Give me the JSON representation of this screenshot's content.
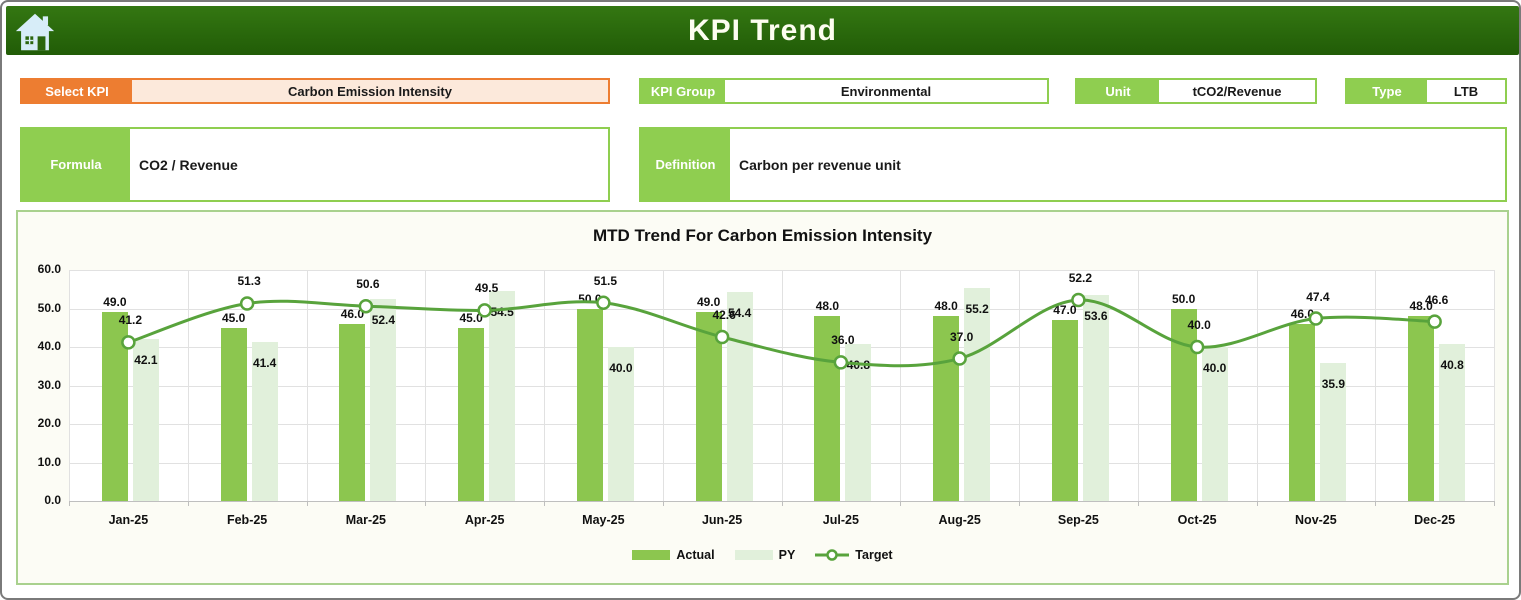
{
  "header": {
    "title": "KPI Trend"
  },
  "controls": {
    "select_kpi": {
      "label": "Select KPI",
      "value": "Carbon Emission Intensity"
    },
    "kpi_group": {
      "label": "KPI Group",
      "value": "Environmental"
    },
    "unit": {
      "label": "Unit",
      "value": "tCO2/Revenue"
    },
    "type": {
      "label": "Type",
      "value": "LTB"
    }
  },
  "details": {
    "formula": {
      "label": "Formula",
      "value": "CO2 / Revenue"
    },
    "definition": {
      "label": "Definition",
      "value": "Carbon per revenue unit"
    }
  },
  "chart_data": {
    "type": "bar",
    "subtype": "grouped bars with smoothed target line overlay",
    "title": "MTD Trend For Carbon Emission Intensity",
    "categories": [
      "Jan-25",
      "Feb-25",
      "Mar-25",
      "Apr-25",
      "May-25",
      "Jun-25",
      "Jul-25",
      "Aug-25",
      "Sep-25",
      "Oct-25",
      "Nov-25",
      "Dec-25"
    ],
    "series": [
      {
        "name": "Actual",
        "type": "bar",
        "color": "#8CC64F",
        "values": [
          49.0,
          45.0,
          46.0,
          45.0,
          50.0,
          49.0,
          48.0,
          48.0,
          47.0,
          50.0,
          46.0,
          48.0
        ]
      },
      {
        "name": "PY",
        "type": "bar",
        "color": "#E1F0DB",
        "values": [
          42.1,
          41.4,
          52.4,
          54.5,
          40.0,
          54.4,
          40.8,
          55.2,
          53.6,
          40.0,
          35.9,
          40.8
        ]
      },
      {
        "name": "Target",
        "type": "line",
        "color": "#58A33C",
        "marker": "open-circle",
        "values": [
          41.2,
          51.3,
          50.6,
          49.5,
          51.5,
          42.6,
          36.0,
          37.0,
          52.2,
          40.0,
          47.4,
          46.6
        ]
      }
    ],
    "ylim": [
      0,
      60
    ],
    "y_tick_step": 10,
    "y_tick_format": "one-decimal",
    "grid": true,
    "legend_position": "bottom"
  },
  "colors": {
    "header_green": "#2B660D",
    "accent_green": "#8FCE50",
    "chart_border_green": "#A9D18E",
    "accent_orange": "#ED7D31",
    "select_value_bg": "#FCE9DB",
    "actual_bar": "#8CC64F",
    "py_bar": "#E1F0DB",
    "target_line": "#58A33C",
    "gridline": "#E1E1E1"
  }
}
